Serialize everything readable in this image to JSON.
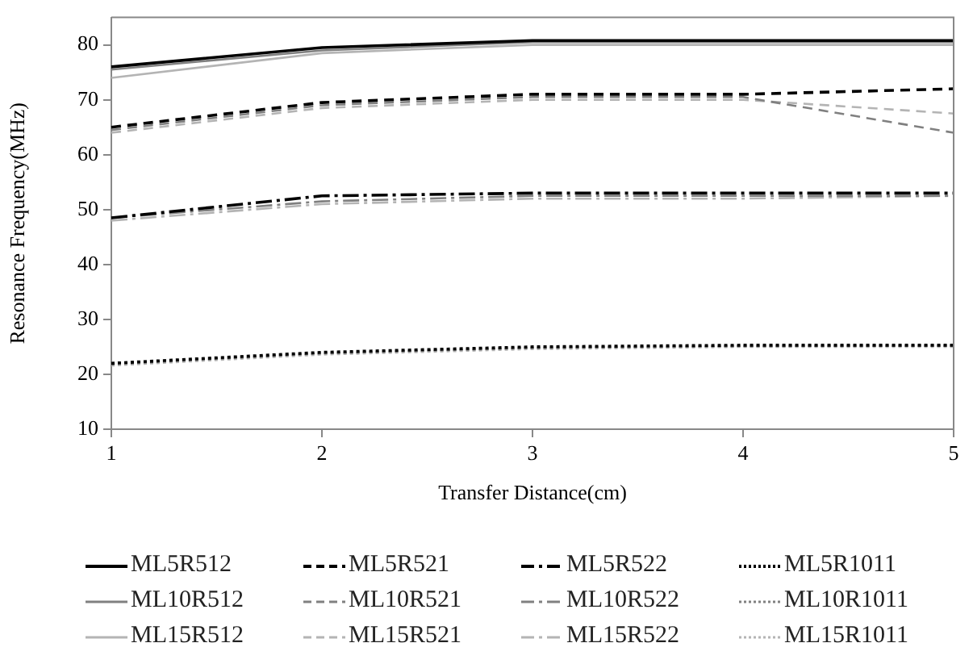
{
  "chart_data": {
    "type": "line",
    "xlabel": "Transfer Distance(cm)",
    "ylabel": "Resonance Frequency(MHz)",
    "x": [
      1,
      2,
      3,
      4,
      5
    ],
    "xlim": [
      1,
      5
    ],
    "xticks": [
      1,
      2,
      3,
      4,
      5
    ],
    "ylim": [
      10,
      85
    ],
    "yticks": [
      10,
      20,
      30,
      40,
      50,
      60,
      70,
      80
    ],
    "grid": false,
    "legend": "bottom",
    "marker": "none",
    "series": [
      {
        "name": "ML5R512",
        "color": "#000000",
        "line_style": "solid",
        "values": [
          76,
          79.5,
          80.8,
          80.8,
          80.8
        ]
      },
      {
        "name": "ML5R521",
        "color": "#000000",
        "line_style": "dashed",
        "values": [
          65,
          69.5,
          71,
          71,
          72
        ]
      },
      {
        "name": "ML5R522",
        "color": "#000000",
        "line_style": "dashdot",
        "values": [
          48.5,
          52.5,
          53,
          53,
          53
        ]
      },
      {
        "name": "ML5R1011",
        "color": "#000000",
        "line_style": "dotted",
        "values": [
          22,
          24,
          25,
          25.3,
          25.3
        ]
      },
      {
        "name": "ML10R512",
        "color": "#808080",
        "line_style": "solid",
        "values": [
          75.5,
          79,
          80.5,
          80.5,
          80.5
        ]
      },
      {
        "name": "ML10R521",
        "color": "#808080",
        "line_style": "dashed",
        "values": [
          64.5,
          69,
          70.5,
          70.5,
          64
        ]
      },
      {
        "name": "ML10R522",
        "color": "#808080",
        "line_style": "dashdot",
        "values": [
          48.5,
          51.5,
          52.5,
          52.5,
          52.5
        ]
      },
      {
        "name": "ML10R1011",
        "color": "#808080",
        "line_style": "dotted",
        "values": [
          21.8,
          23.8,
          24.8,
          25.1,
          25.2
        ]
      },
      {
        "name": "ML15R512",
        "color": "#b4b4b4",
        "line_style": "solid",
        "values": [
          74,
          78.5,
          80,
          80,
          80
        ]
      },
      {
        "name": "ML15R521",
        "color": "#b4b4b4",
        "line_style": "dashed",
        "values": [
          64,
          68.5,
          70,
          70,
          67.5
        ]
      },
      {
        "name": "ML15R522",
        "color": "#b4b4b4",
        "line_style": "dashdot",
        "values": [
          48,
          51,
          52,
          52,
          52.5
        ]
      },
      {
        "name": "ML15R1011",
        "color": "#b4b4b4",
        "line_style": "dotted",
        "values": [
          21.6,
          23.6,
          24.6,
          25,
          25
        ]
      }
    ]
  }
}
